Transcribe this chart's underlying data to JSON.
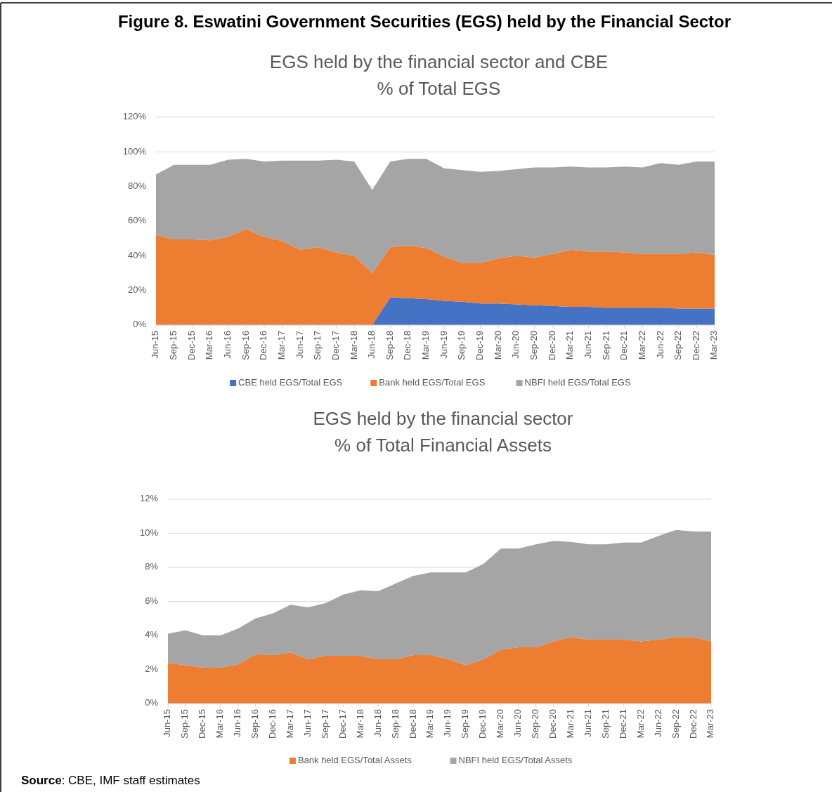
{
  "chart_data": [
    {
      "type": "area",
      "title": "Figure 8. Eswatini Government Securities (EGS) held by the Financial Sector",
      "subtitle": "EGS held by the financial sector and CBE\n% of Total EGS",
      "stacked": true,
      "grid": "y",
      "legend": "bottom",
      "categories": [
        "Jun-15",
        "Sep-15",
        "Dec-15",
        "Mar-16",
        "Jun-16",
        "Sep-16",
        "Dec-16",
        "Mar-17",
        "Jun-17",
        "Sep-17",
        "Dec-17",
        "Mar-18",
        "Jun-18",
        "Sep-18",
        "Dec-18",
        "Mar-19",
        "Jun-19",
        "Sep-19",
        "Dec-19",
        "Mar-20",
        "Jun-20",
        "Sep-20",
        "Dec-20",
        "Mar-21",
        "Jun-21",
        "Sep-21",
        "Dec-21",
        "Mar-22",
        "Jun-22",
        "Sep-22",
        "Dec-22",
        "Mar-23"
      ],
      "ylim": [
        0,
        120
      ],
      "yticks": [
        {
          "value": 0,
          "label": "0%"
        },
        {
          "value": 20,
          "label": "20%"
        },
        {
          "value": 40,
          "label": "40%"
        },
        {
          "value": 60,
          "label": "60%"
        },
        {
          "value": 80,
          "label": "80%"
        },
        {
          "value": 100,
          "label": "100%"
        },
        {
          "value": 120,
          "label": "120%"
        }
      ],
      "series": [
        {
          "name": "CBE held EGS/Total EGS",
          "color": "#4472c4",
          "values": [
            0,
            0,
            0,
            0,
            0,
            0,
            0,
            0,
            0,
            0,
            0,
            0,
            0,
            16,
            15.5,
            15,
            14,
            13.5,
            12.5,
            12.5,
            12,
            11.5,
            11,
            10.5,
            10.5,
            10,
            10,
            10,
            10,
            9.5,
            9.5,
            9.5
          ]
        },
        {
          "name": "Bank held EGS/Total EGS",
          "color": "#ed7d31",
          "values": [
            52,
            49.5,
            49.5,
            49,
            51,
            55.5,
            51,
            48.5,
            43.5,
            45,
            42,
            40,
            30,
            29,
            30.5,
            29.5,
            25.5,
            22.5,
            23.5,
            26,
            28,
            27.5,
            30,
            33,
            32,
            32.5,
            32,
            31,
            31,
            31.5,
            32.5,
            31
          ]
        },
        {
          "name": "NBFI held EGS/Total EGS",
          "color": "#a5a5a5",
          "values": [
            35,
            43,
            43,
            43.5,
            44.5,
            40.5,
            43.5,
            46.5,
            51.5,
            50,
            53.5,
            54.5,
            48,
            49.5,
            50,
            51.5,
            51,
            53.5,
            52.5,
            50.5,
            50,
            52,
            50,
            48,
            48.5,
            48.5,
            49.5,
            50,
            52.5,
            51.5,
            52.5,
            54
          ]
        }
      ]
    },
    {
      "type": "area",
      "title": "EGS held by the financial sector\n% of Total Financial Assets",
      "stacked": true,
      "grid": "y",
      "legend": "bottom",
      "categories": [
        "Jun-15",
        "Sep-15",
        "Dec-15",
        "Mar-16",
        "Jun-16",
        "Sep-16",
        "Dec-16",
        "Mar-17",
        "Jun-17",
        "Sep-17",
        "Dec-17",
        "Mar-18",
        "Jun-18",
        "Sep-18",
        "Dec-18",
        "Mar-19",
        "Jun-19",
        "Sep-19",
        "Dec-19",
        "Mar-20",
        "Jun-20",
        "Sep-20",
        "Dec-20",
        "Mar-21",
        "Jun-21",
        "Sep-21",
        "Dec-21",
        "Mar-22",
        "Jun-22",
        "Sep-22",
        "Dec-22",
        "Mar-23"
      ],
      "ylim": [
        0,
        12
      ],
      "yticks": [
        {
          "value": 0,
          "label": "0%"
        },
        {
          "value": 2,
          "label": "2%"
        },
        {
          "value": 4,
          "label": "4%"
        },
        {
          "value": 6,
          "label": "6%"
        },
        {
          "value": 8,
          "label": "8%"
        },
        {
          "value": 10,
          "label": "10%"
        },
        {
          "value": 12,
          "label": "12%"
        }
      ],
      "series": [
        {
          "name": "Bank held EGS/Total Assets",
          "color": "#ed7d31",
          "values": [
            2.4,
            2.25,
            2.1,
            2.1,
            2.3,
            2.9,
            2.85,
            3.0,
            2.6,
            2.8,
            2.8,
            2.8,
            2.6,
            2.6,
            2.85,
            2.85,
            2.6,
            2.25,
            2.6,
            3.15,
            3.3,
            3.3,
            3.65,
            3.9,
            3.75,
            3.75,
            3.75,
            3.65,
            3.75,
            3.9,
            3.9,
            3.65
          ]
        },
        {
          "name": "NBFI held EGS/Total Assets",
          "color": "#a5a5a5",
          "values": [
            1.7,
            2.05,
            1.9,
            1.9,
            2.1,
            2.1,
            2.45,
            2.8,
            3.05,
            3.1,
            3.6,
            3.85,
            4.0,
            4.45,
            4.65,
            4.85,
            5.1,
            5.45,
            5.6,
            5.95,
            5.8,
            6.05,
            5.9,
            5.6,
            5.6,
            5.6,
            5.7,
            5.8,
            6.1,
            6.3,
            6.2,
            6.45
          ]
        }
      ],
      "annotations": [
        "Source: CBE, IMF staff estimates"
      ]
    }
  ]
}
